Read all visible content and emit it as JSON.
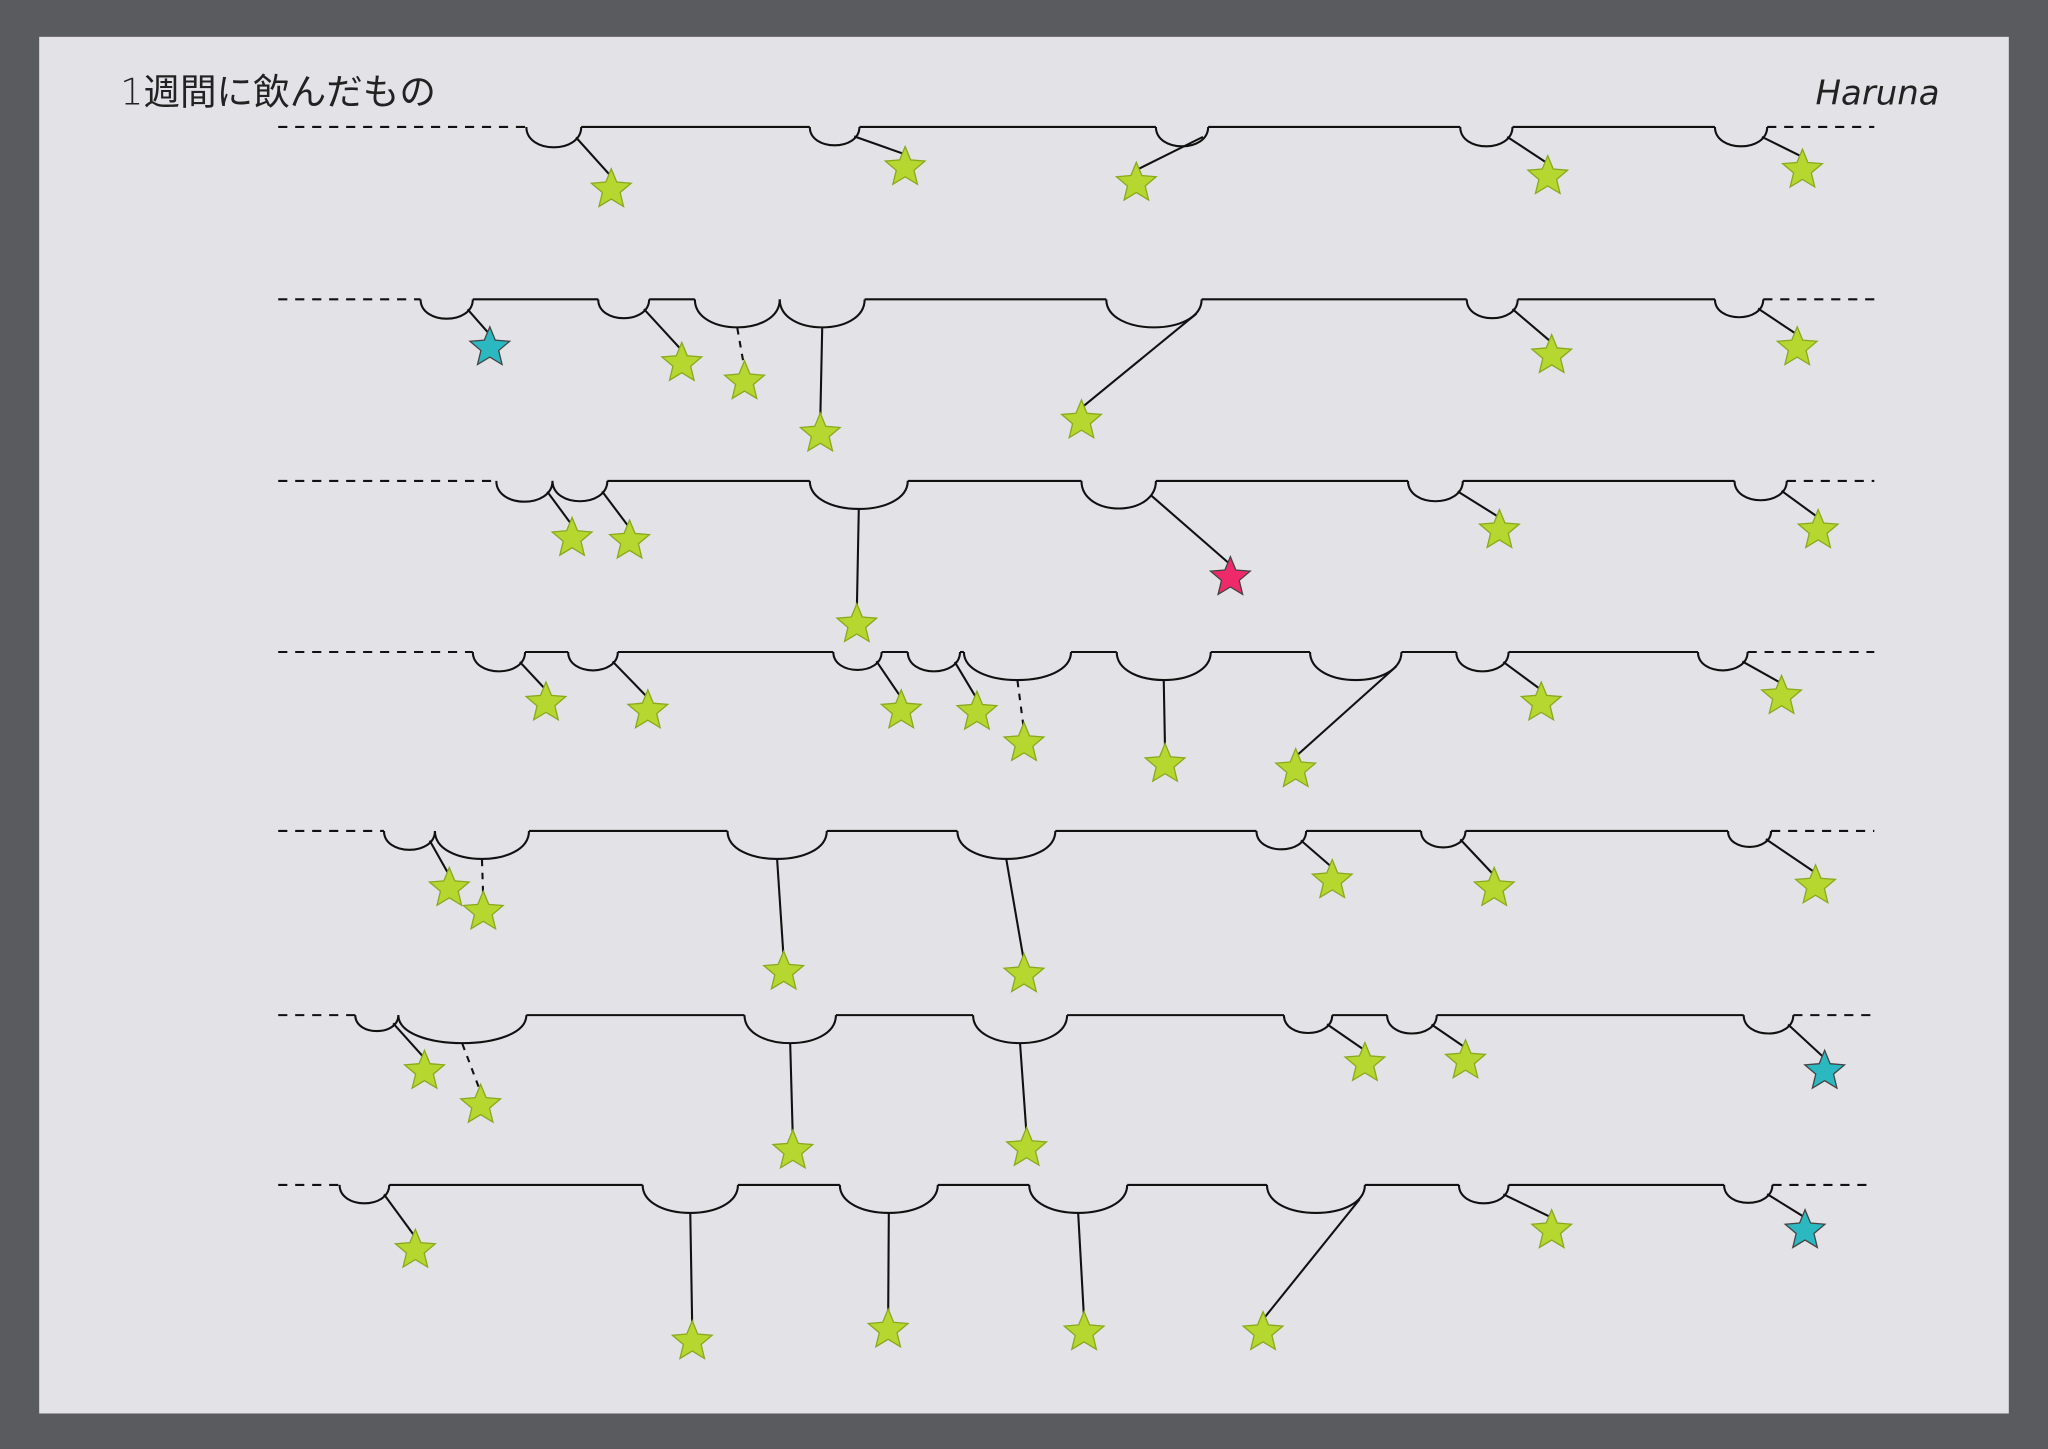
{
  "header": {
    "title": "1週間に飲んだもの",
    "author": "Haruna"
  }
}
